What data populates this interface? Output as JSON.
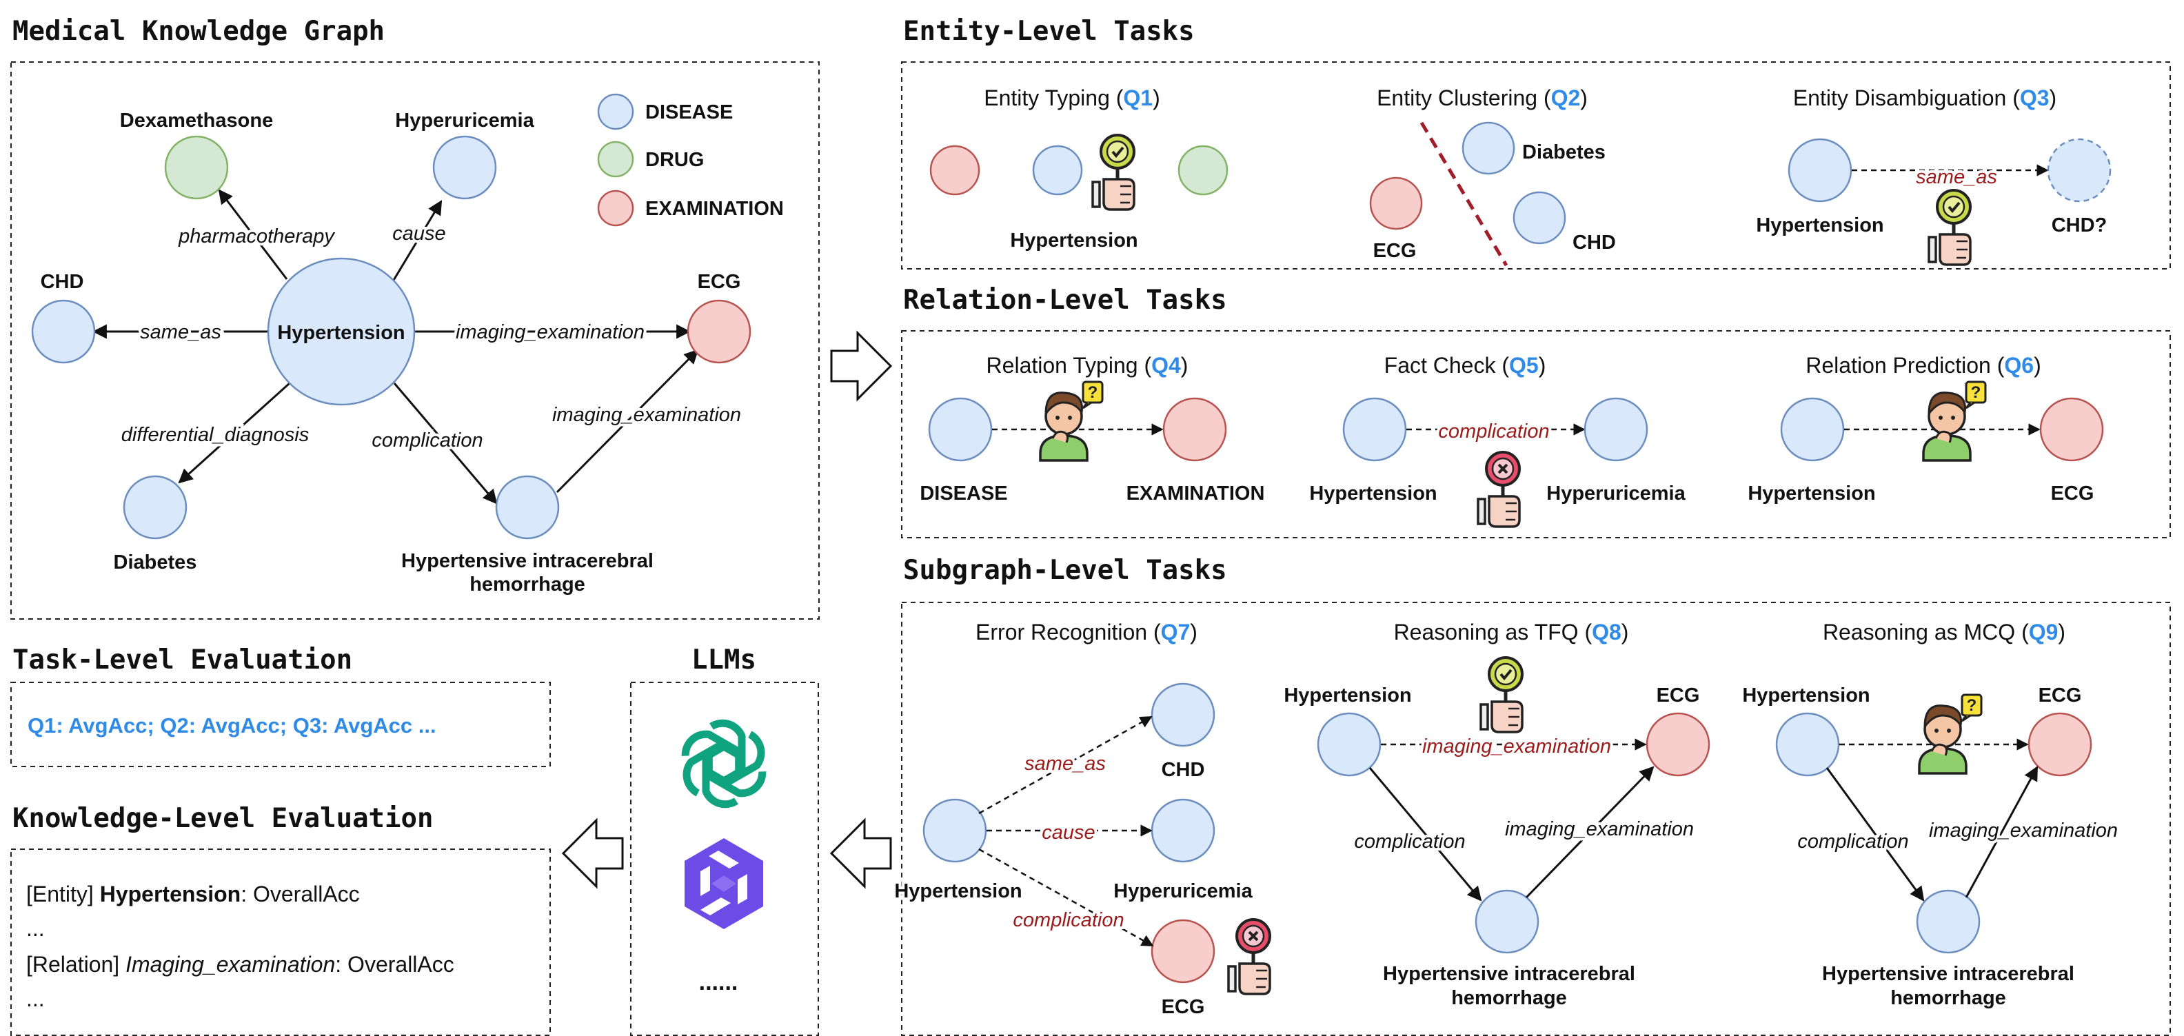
{
  "sections": {
    "kg": "Medical Knowledge Graph",
    "entity": "Entity-Level Tasks",
    "relation": "Relation-Level Tasks",
    "subgraph": "Subgraph-Level Tasks",
    "task_eval": "Task-Level Evaluation",
    "knowledge_eval": "Knowledge-Level Evaluation",
    "llms": "LLMs"
  },
  "legend": {
    "disease": "DISEASE",
    "drug": "DRUG",
    "examination": "EXAMINATION"
  },
  "colors": {
    "disease": "#dae8fc",
    "drug": "#d5e8d4",
    "examination": "#f8cecc",
    "accent": "#2f8be6",
    "relation_red": "#9b1b1b"
  },
  "kg": {
    "nodes": {
      "center": "Hypertension",
      "dexamethasone": "Dexamethasone",
      "hyperuricemia": "Hyperuricemia",
      "chd": "CHD",
      "ecg": "ECG",
      "diabetes": "Diabetes",
      "hich_1": "Hypertensive intracerebral",
      "hich_2": "hemorrhage"
    },
    "edges": {
      "pharmacotherapy": "pharmacotherapy",
      "cause": "cause",
      "same_as": "same_as",
      "imaging_examination": "imaging_examination",
      "differential_diagnosis": "differential_diagnosis",
      "complication": "complication",
      "imaging_examination_2": "imaging_examination"
    }
  },
  "tasks": {
    "q1": {
      "title": "Entity Typing (",
      "id": "Q1",
      "close": ")",
      "node": "Hypertension"
    },
    "q2": {
      "title": "Entity Clustering (",
      "id": "Q2",
      "close": ")",
      "a": "Diabetes",
      "b": "ECG",
      "c": "CHD"
    },
    "q3": {
      "title": "Entity Disambiguation (",
      "id": "Q3",
      "close": ")",
      "a": "Hypertension",
      "rel": "same_as",
      "b": "CHD?"
    },
    "q4": {
      "title": "Relation Typing (",
      "id": "Q4",
      "close": ")",
      "a": "DISEASE",
      "b": "EXAMINATION"
    },
    "q5": {
      "title": "Fact Check (",
      "id": "Q5",
      "close": ")",
      "a": "Hypertension",
      "rel": "complication",
      "b": "Hyperuricemia"
    },
    "q6": {
      "title": "Relation Prediction (",
      "id": "Q6",
      "close": ")",
      "a": "Hypertension",
      "b": "ECG"
    },
    "q7": {
      "title": "Error Recognition (",
      "id": "Q7",
      "close": ")",
      "src": "Hypertension",
      "r1": "same_as",
      "t1": "CHD",
      "r2": "cause",
      "t2": "Hyperuricemia",
      "r3": "complication",
      "t3": "ECG"
    },
    "q8": {
      "title": "Reasoning as TFQ (",
      "id": "Q8",
      "close": ")",
      "a": "Hypertension",
      "b": "ECG",
      "rel": "imaging_examination",
      "r_left": "complication",
      "r_right": "imaging_examination",
      "c1": "Hypertensive intracerebral",
      "c2": "hemorrhage"
    },
    "q9": {
      "title": "Reasoning as MCQ (",
      "id": "Q9",
      "close": ")",
      "a": "Hypertension",
      "b": "ECG",
      "r_left": "complication",
      "r_right": "imaging_examination",
      "c1": "Hypertensive intracerebral",
      "c2": "hemorrhage"
    }
  },
  "task_eval": {
    "text": "Q1: AvgAcc; Q2: AvgAcc; Q3: AvgAcc ..."
  },
  "knowledge_eval": {
    "line1_prefix": "[Entity] ",
    "line1_name": "Hypertension",
    "line1_suffix": ": OverallAcc",
    "dots1": "...",
    "line2_prefix": "[Relation] ",
    "line2_name": "Imaging_examination",
    "line2_suffix": ": OverallAcc",
    "dots2": "..."
  },
  "llms": {
    "more": "......",
    "icons": [
      "openai-logo-icon",
      "qwen-logo-icon"
    ]
  }
}
